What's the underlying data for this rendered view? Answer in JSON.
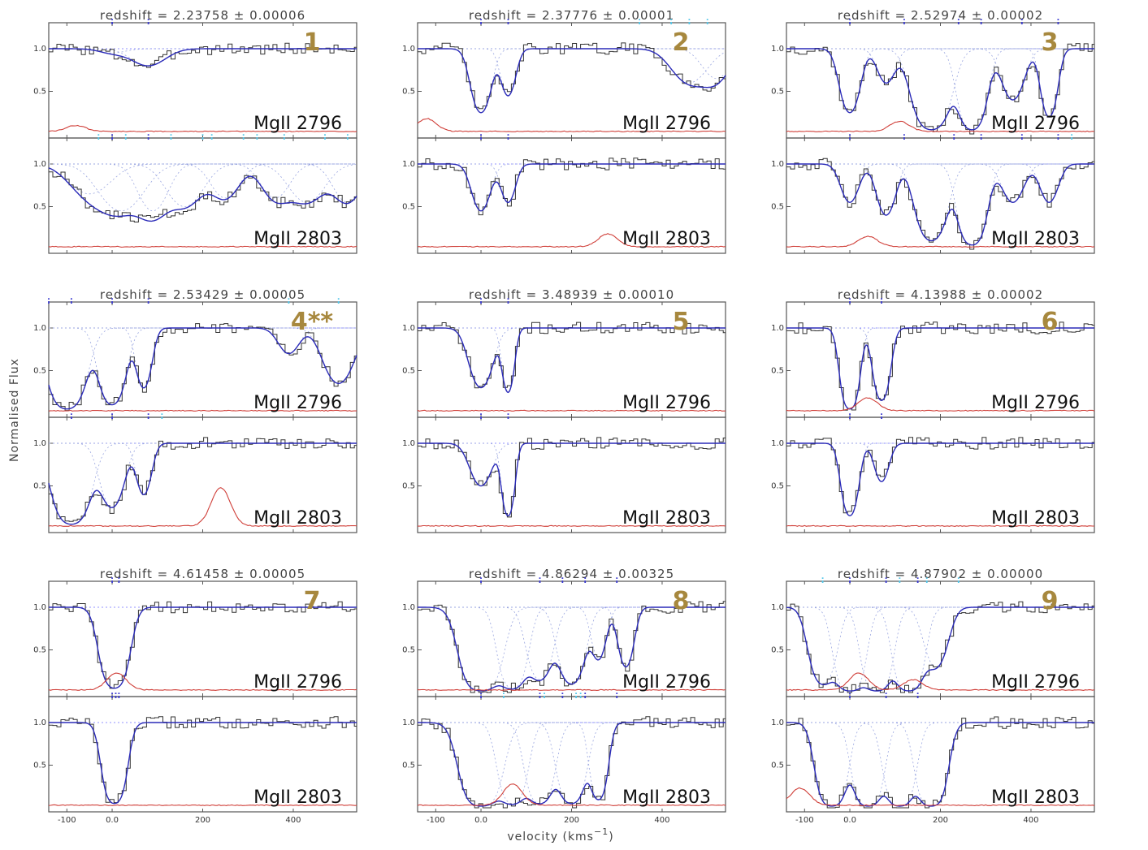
{
  "chart_data": {
    "type": "line",
    "ylabel": "Normalised Flux",
    "xlabel": "velocity (kms",
    "xlabel_sup": "−1",
    "xlabel_close": ")",
    "x_ticks": [
      "-100",
      "0.0",
      "200",
      "400"
    ],
    "y_ticks": [
      "1.0",
      "0.5"
    ],
    "xlim": [
      -140,
      540
    ],
    "ylim": [
      0,
      1.6
    ],
    "grid": false,
    "colors": {
      "observed": "#333333",
      "fit": "#2a2ab8",
      "components": "#9aa6e0",
      "error": "#d0403a",
      "component_ticks": "#3a3ad0",
      "blend_ticks": "#55c7ea",
      "panel_number": "#a7883e"
    },
    "panels": [
      {
        "number": "1",
        "title": "redshift  =  2.23758  ± 0.00006",
        "lines": [
          {
            "label": "MgII  2796",
            "ticks": [
              0,
              80
            ],
            "cyan_ticks": [],
            "absorbers": [
              {
                "v": 0,
                "d": 0.05,
                "w": 40
              },
              {
                "v": 80,
                "d": 0.2,
                "w": 50
              }
            ],
            "err_bumps": [
              {
                "v": -80,
                "h": 0.07
              }
            ]
          },
          {
            "label": "MgII  2803",
            "ticks": [
              0,
              80
            ],
            "cyan_ticks": [
              -30,
              30,
              130,
              200,
              220,
              290,
              320,
              380,
              470,
              520
            ],
            "absorbers": [
              {
                "v": -50,
                "d": 0.35,
                "w": 60
              },
              {
                "v": 20,
                "d": 0.55,
                "w": 60
              },
              {
                "v": 90,
                "d": 0.55,
                "w": 40
              },
              {
                "v": 160,
                "d": 0.5,
                "w": 50
              },
              {
                "v": 250,
                "d": 0.4,
                "w": 40
              },
              {
                "v": 360,
                "d": 0.4,
                "w": 40
              },
              {
                "v": 430,
                "d": 0.45,
                "w": 50
              },
              {
                "v": 520,
                "d": 0.45,
                "w": 40
              }
            ],
            "err_bumps": []
          }
        ]
      },
      {
        "number": "2",
        "title": "redshift  =  2.37776  ± 0.00001",
        "lines": [
          {
            "label": "MgII  2796",
            "ticks": [
              0,
              60
            ],
            "cyan_ticks": [
              350,
              420,
              460,
              500
            ],
            "absorbers": [
              {
                "v": 0,
                "d": 0.75,
                "w": 25
              },
              {
                "v": 60,
                "d": 0.55,
                "w": 20
              },
              {
                "v": 460,
                "d": 0.4,
                "w": 50
              },
              {
                "v": 520,
                "d": 0.35,
                "w": 40
              }
            ],
            "err_bumps": [
              {
                "v": -120,
                "h": 0.15
              }
            ]
          },
          {
            "label": "MgII  2803",
            "ticks": [
              0,
              60
            ],
            "cyan_ticks": [],
            "absorbers": [
              {
                "v": 0,
                "d": 0.55,
                "w": 25
              },
              {
                "v": 60,
                "d": 0.45,
                "w": 20
              }
            ],
            "err_bumps": [
              {
                "v": 280,
                "h": 0.15
              }
            ]
          }
        ]
      },
      {
        "number": "3",
        "title": "redshift  =  2.52974  ± 0.00002",
        "lines": [
          {
            "label": "MgII  2796",
            "ticks": [
              0,
              120,
              240,
              290,
              380,
              460
            ],
            "cyan_ticks": [],
            "absorbers": [
              {
                "v": 0,
                "d": 0.75,
                "w": 25
              },
              {
                "v": 80,
                "d": 0.4,
                "w": 25
              },
              {
                "v": 180,
                "d": 0.95,
                "w": 40
              },
              {
                "v": 270,
                "d": 0.95,
                "w": 30
              },
              {
                "v": 360,
                "d": 0.6,
                "w": 30
              },
              {
                "v": 440,
                "d": 0.8,
                "w": 20
              }
            ],
            "err_bumps": [
              {
                "v": 110,
                "h": 0.12
              }
            ]
          },
          {
            "label": "MgII  2803",
            "ticks": [
              0,
              120,
              230,
              290,
              380,
              460
            ],
            "cyan_ticks": [
              490
            ],
            "absorbers": [
              {
                "v": 0,
                "d": 0.45,
                "w": 25
              },
              {
                "v": 80,
                "d": 0.6,
                "w": 25
              },
              {
                "v": 180,
                "d": 0.9,
                "w": 35
              },
              {
                "v": 270,
                "d": 0.95,
                "w": 30
              },
              {
                "v": 360,
                "d": 0.45,
                "w": 30
              },
              {
                "v": 440,
                "d": 0.45,
                "w": 25
              }
            ],
            "err_bumps": [
              {
                "v": 40,
                "h": 0.12
              }
            ]
          }
        ]
      },
      {
        "number": "4**",
        "title": "redshift  =  2.53429  ± 0.00005",
        "lines": [
          {
            "label": "MgII  2796",
            "ticks": [
              -140,
              -90,
              0,
              80
            ],
            "cyan_ticks": [
              390,
              500
            ],
            "absorbers": [
              {
                "v": -100,
                "d": 0.95,
                "w": 40
              },
              {
                "v": 0,
                "d": 0.9,
                "w": 30
              },
              {
                "v": 70,
                "d": 0.7,
                "w": 20
              },
              {
                "v": 390,
                "d": 0.3,
                "w": 30
              },
              {
                "v": 500,
                "d": 0.65,
                "w": 40
              }
            ],
            "err_bumps": []
          },
          {
            "label": "MgII  2803",
            "ticks": [
              -90,
              0,
              80
            ],
            "cyan_ticks": [
              110
            ],
            "absorbers": [
              {
                "v": -90,
                "d": 0.95,
                "w": 40
              },
              {
                "v": 0,
                "d": 0.75,
                "w": 30
              },
              {
                "v": 70,
                "d": 0.6,
                "w": 20
              }
            ],
            "err_bumps": [
              {
                "v": 240,
                "h": 0.45
              }
            ]
          }
        ]
      },
      {
        "number": "5",
        "title": "redshift  =  3.48939  ± 0.00010",
        "lines": [
          {
            "label": "MgII  2796",
            "ticks": [
              0,
              60
            ],
            "cyan_ticks": [],
            "absorbers": [
              {
                "v": 0,
                "d": 0.7,
                "w": 30
              },
              {
                "v": 60,
                "d": 0.75,
                "w": 15
              }
            ],
            "err_bumps": []
          },
          {
            "label": "MgII  2803",
            "ticks": [
              0,
              60
            ],
            "cyan_ticks": [],
            "absorbers": [
              {
                "v": 0,
                "d": 0.5,
                "w": 30
              },
              {
                "v": 60,
                "d": 0.85,
                "w": 15
              }
            ],
            "err_bumps": []
          }
        ]
      },
      {
        "number": "6",
        "title": "redshift  =  4.13988  ± 0.00002",
        "lines": [
          {
            "label": "MgII  2796",
            "ticks": [
              0,
              70
            ],
            "cyan_ticks": [],
            "absorbers": [
              {
                "v": 0,
                "d": 0.95,
                "w": 20
              },
              {
                "v": 70,
                "d": 0.85,
                "w": 20
              }
            ],
            "err_bumps": [
              {
                "v": 40,
                "h": 0.15
              }
            ]
          },
          {
            "label": "MgII  2803",
            "ticks": [
              0,
              70
            ],
            "cyan_ticks": [],
            "absorbers": [
              {
                "v": 0,
                "d": 0.85,
                "w": 20
              },
              {
                "v": 70,
                "d": 0.45,
                "w": 20
              }
            ],
            "err_bumps": []
          }
        ]
      },
      {
        "number": "7",
        "title": "redshift  =  4.61458  ± 0.00005",
        "lines": [
          {
            "label": "MgII  2796",
            "ticks": [
              0,
              15
            ],
            "cyan_ticks": [],
            "absorbers": [
              {
                "v": 5,
                "d": 0.95,
                "w": 30
              }
            ],
            "err_bumps": [
              {
                "v": 10,
                "h": 0.2
              }
            ]
          },
          {
            "label": "MgII  2803",
            "ticks": [
              0,
              8,
              15
            ],
            "cyan_ticks": [],
            "absorbers": [
              {
                "v": 5,
                "d": 0.95,
                "w": 25
              }
            ],
            "err_bumps": []
          }
        ]
      },
      {
        "number": "8",
        "title": "redshift  =  4.86294  ± 0.00325",
        "lines": [
          {
            "label": "MgII  2796",
            "ticks": [
              0,
              130,
              180,
              230,
              300
            ],
            "cyan_ticks": [],
            "absorbers": [
              {
                "v": 0,
                "d": 0.98,
                "w": 40
              },
              {
                "v": 70,
                "d": 0.95,
                "w": 30
              },
              {
                "v": 130,
                "d": 0.85,
                "w": 30
              },
              {
                "v": 200,
                "d": 0.9,
                "w": 30
              },
              {
                "v": 260,
                "d": 0.6,
                "w": 20
              },
              {
                "v": 320,
                "d": 0.7,
                "w": 20
              }
            ],
            "err_bumps": []
          },
          {
            "label": "MgII  2803",
            "ticks": [
              0,
              130,
              180,
              230,
              300
            ],
            "cyan_ticks": [
              50,
              140,
              210,
              220
            ],
            "absorbers": [
              {
                "v": 0,
                "d": 0.98,
                "w": 40
              },
              {
                "v": 70,
                "d": 0.95,
                "w": 30
              },
              {
                "v": 130,
                "d": 0.95,
                "w": 30
              },
              {
                "v": 200,
                "d": 0.95,
                "w": 30
              },
              {
                "v": 260,
                "d": 0.9,
                "w": 20
              }
            ],
            "err_bumps": [
              {
                "v": 70,
                "h": 0.25
              }
            ]
          }
        ]
      },
      {
        "number": "9",
        "title": "redshift  =  4.87902  ± 0.00000",
        "lines": [
          {
            "label": "MgII  2796",
            "ticks": [
              0,
              80,
              150
            ],
            "cyan_ticks": [
              -60,
              110,
              170,
              240
            ],
            "absorbers": [
              {
                "v": -60,
                "d": 0.9,
                "w": 30
              },
              {
                "v": 0,
                "d": 0.98,
                "w": 30
              },
              {
                "v": 60,
                "d": 0.98,
                "w": 30
              },
              {
                "v": 130,
                "d": 0.98,
                "w": 30
              },
              {
                "v": 190,
                "d": 0.7,
                "w": 30
              }
            ],
            "err_bumps": [
              {
                "v": 20,
                "h": 0.2
              },
              {
                "v": 140,
                "h": 0.12
              }
            ]
          },
          {
            "label": "MgII  2803",
            "ticks": [
              0,
              80,
              150
            ],
            "cyan_ticks": [],
            "absorbers": [
              {
                "v": -40,
                "d": 0.98,
                "w": 30
              },
              {
                "v": 40,
                "d": 0.98,
                "w": 30
              },
              {
                "v": 110,
                "d": 0.98,
                "w": 30
              },
              {
                "v": 180,
                "d": 0.98,
                "w": 30
              }
            ],
            "err_bumps": [
              {
                "v": -110,
                "h": 0.2
              }
            ]
          }
        ]
      }
    ]
  }
}
